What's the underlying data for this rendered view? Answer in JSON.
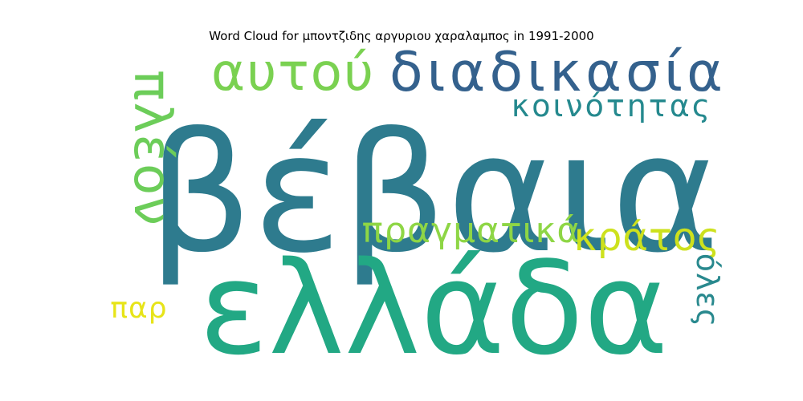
{
  "chart_data": {
    "type": "wordcloud",
    "title": "Word Cloud for μποντζιδης αργυριου χαραλαμπος in 1991-2000",
    "words": [
      {
        "text": "βέβαια",
        "weight": 1.0,
        "color": "#2e7b8e",
        "orientation": "horizontal"
      },
      {
        "text": "ελλάδα",
        "weight": 0.85,
        "color": "#22a884",
        "orientation": "horizontal"
      },
      {
        "text": "διαδικασία",
        "weight": 0.45,
        "color": "#34618d",
        "orientation": "horizontal"
      },
      {
        "text": "αυτού",
        "weight": 0.42,
        "color": "#7ad151",
        "orientation": "horizontal"
      },
      {
        "text": "πλέον",
        "weight": 0.42,
        "color": "#6ccd59",
        "orientation": "vertical"
      },
      {
        "text": "κοινότητας",
        "weight": 0.28,
        "color": "#25898e",
        "orientation": "horizontal"
      },
      {
        "text": "πραγματικά",
        "weight": 0.3,
        "color": "#8ed645",
        "orientation": "horizontal"
      },
      {
        "text": "κράτος",
        "weight": 0.33,
        "color": "#cde11d",
        "orientation": "horizontal"
      },
      {
        "text": "όλες",
        "weight": 0.26,
        "color": "#29898e",
        "orientation": "vertical"
      },
      {
        "text": "παρ",
        "weight": 0.24,
        "color": "#e7e419",
        "orientation": "horizontal"
      }
    ]
  }
}
